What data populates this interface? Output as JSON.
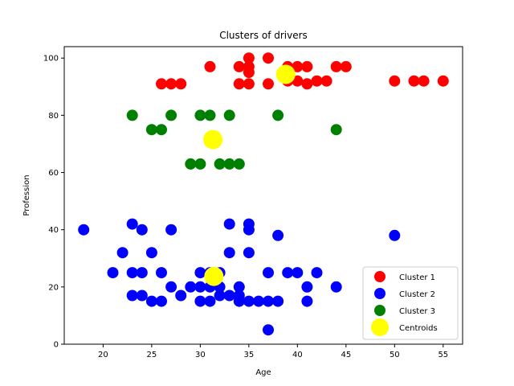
{
  "chart_data": {
    "type": "scatter",
    "title": "Clusters of drivers",
    "xlabel": "Age",
    "ylabel": "Profession",
    "xlim": [
      16,
      57
    ],
    "ylim": [
      0,
      104
    ],
    "xticks": [
      20,
      25,
      30,
      35,
      40,
      45,
      50,
      55
    ],
    "yticks": [
      0,
      20,
      40,
      60,
      80,
      100
    ],
    "legend_position": "lower-right",
    "grid": false,
    "series": [
      {
        "name": "Cluster 1",
        "color": "#ff0000",
        "points": [
          [
            26,
            91
          ],
          [
            27,
            91
          ],
          [
            28,
            91
          ],
          [
            31,
            97
          ],
          [
            34,
            97
          ],
          [
            34,
            91
          ],
          [
            35,
            100
          ],
          [
            35,
            97
          ],
          [
            35,
            95
          ],
          [
            35,
            91
          ],
          [
            37,
            100
          ],
          [
            37,
            91
          ],
          [
            39,
            97
          ],
          [
            39,
            92
          ],
          [
            40,
            97
          ],
          [
            40,
            92
          ],
          [
            41,
            97
          ],
          [
            41,
            91
          ],
          [
            42,
            92
          ],
          [
            43,
            92
          ],
          [
            44,
            97
          ],
          [
            45,
            97
          ],
          [
            50,
            92
          ],
          [
            52,
            92
          ],
          [
            53,
            92
          ],
          [
            55,
            92
          ]
        ]
      },
      {
        "name": "Cluster 2",
        "color": "#0000ff",
        "points": [
          [
            18,
            40
          ],
          [
            21,
            25
          ],
          [
            22,
            32
          ],
          [
            23,
            42
          ],
          [
            23,
            25
          ],
          [
            23,
            17
          ],
          [
            24,
            40
          ],
          [
            24,
            25
          ],
          [
            24,
            17
          ],
          [
            25,
            32
          ],
          [
            25,
            15
          ],
          [
            26,
            25
          ],
          [
            26,
            15
          ],
          [
            27,
            40
          ],
          [
            27,
            20
          ],
          [
            28,
            17
          ],
          [
            29,
            20
          ],
          [
            30,
            25
          ],
          [
            30,
            20
          ],
          [
            30,
            15
          ],
          [
            31,
            25
          ],
          [
            31,
            20
          ],
          [
            31,
            15
          ],
          [
            32,
            25
          ],
          [
            32,
            20
          ],
          [
            32,
            17
          ],
          [
            33,
            42
          ],
          [
            33,
            32
          ],
          [
            33,
            17
          ],
          [
            34,
            20
          ],
          [
            34,
            17
          ],
          [
            34,
            15
          ],
          [
            35,
            42
          ],
          [
            35,
            40
          ],
          [
            35,
            32
          ],
          [
            35,
            15
          ],
          [
            36,
            15
          ],
          [
            37,
            25
          ],
          [
            37,
            15
          ],
          [
            37,
            5
          ],
          [
            38,
            38
          ],
          [
            38,
            15
          ],
          [
            39,
            25
          ],
          [
            40,
            25
          ],
          [
            41,
            20
          ],
          [
            41,
            15
          ],
          [
            42,
            25
          ],
          [
            44,
            20
          ],
          [
            50,
            38
          ]
        ]
      },
      {
        "name": "Cluster 3",
        "color": "#008000",
        "points": [
          [
            23,
            80
          ],
          [
            25,
            75
          ],
          [
            26,
            75
          ],
          [
            27,
            80
          ],
          [
            29,
            63
          ],
          [
            30,
            80
          ],
          [
            30,
            63
          ],
          [
            31,
            80
          ],
          [
            32,
            63
          ],
          [
            33,
            80
          ],
          [
            33,
            63
          ],
          [
            34,
            63
          ],
          [
            38,
            80
          ],
          [
            44,
            75
          ]
        ]
      },
      {
        "name": "Centroids",
        "color": "#ffff00",
        "points": [
          [
            38.8,
            94.3
          ],
          [
            31.4,
            23.7
          ],
          [
            31.3,
            71.5
          ]
        ]
      }
    ]
  }
}
